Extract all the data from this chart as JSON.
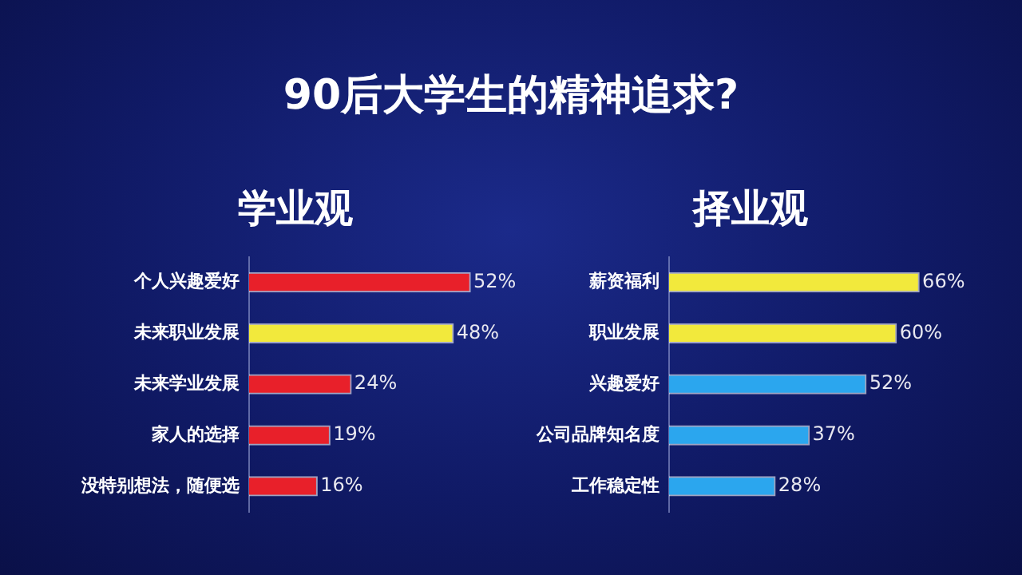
{
  "chart_data": [
    {
      "type": "other",
      "title": "90后大学生的精神追求?"
    },
    {
      "type": "bar",
      "orientation": "horizontal",
      "title": "学业观",
      "categories": [
        "个人兴趣爱好",
        "未来职业发展",
        "未来学业发展",
        "家人的选择",
        "没特别想法，随便选"
      ],
      "values": [
        52,
        48,
        24,
        19,
        16
      ],
      "colors": [
        "#e8202a",
        "#f2e93c",
        "#e8202a",
        "#e8202a",
        "#e8202a"
      ],
      "value_labels": [
        "52%",
        "48%",
        "24%",
        "19%",
        "16%"
      ],
      "grid": false,
      "legend": false
    },
    {
      "type": "bar",
      "orientation": "horizontal",
      "title": "择业观",
      "categories": [
        "薪资福利",
        "职业发展",
        "兴趣爱好",
        "公司品牌知名度",
        "工作稳定性"
      ],
      "values": [
        66,
        60,
        52,
        37,
        28
      ],
      "colors": [
        "#f2e93c",
        "#f2e93c",
        "#2ba6ee",
        "#2ba6ee",
        "#2ba6ee"
      ],
      "value_labels": [
        "66%",
        "60%",
        "52%",
        "37%",
        "28%"
      ],
      "grid": false,
      "legend": false
    }
  ]
}
